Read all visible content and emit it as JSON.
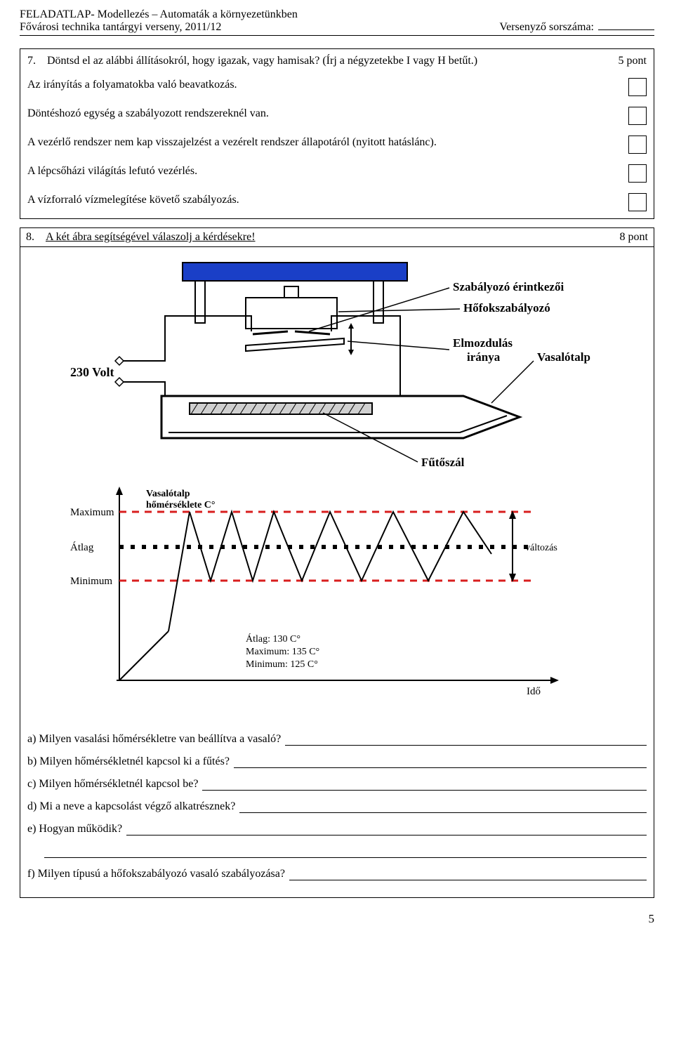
{
  "header": {
    "title": "FELADATLAP- Modellezés – Automaták a környezetünkben",
    "left": "Fővárosi technika tantárgyi verseny, 2011/12",
    "right": "Versenyző sorszáma:"
  },
  "q7": {
    "number": "7.",
    "prompt": "Döntsd el az alábbi állításokról, hogy igazak, vagy hamisak? (Írj a négyzetekbe I vagy H betűt.)",
    "points": "5 pont",
    "statements": [
      "Az irányítás a folyamatokba való beavatkozás.",
      "Döntéshozó egység a szabályozott rendszereknél van.",
      "A vezérlő rendszer nem kap visszajelzést a vezérelt rendszer állapotáról (nyitott hatáslánc).",
      "A lépcsőházi világítás lefutó vezérlés.",
      "A vízforraló vízmelegítése követő szabályozás."
    ]
  },
  "q8": {
    "number": "8.",
    "prompt": "A két ábra segítségével válaszolj a kérdésekre!",
    "points": "8 pont",
    "iron_diagram": {
      "voltage_label": "230 Volt",
      "labels": {
        "contacts": "Szabályozó érintkezői",
        "thermostat": "Hőfokszabályozó",
        "displacement_line1": "Elmozdulás",
        "displacement_line2": "iránya",
        "soleplate": "Vasalótalp",
        "heater": "Fűtőszál"
      },
      "colors": {
        "handle": "#1a3fc7",
        "body_stroke": "#000000",
        "wire_stroke": "#000000",
        "heater_fill": "#d0d0d0"
      }
    },
    "temp_chart": {
      "y_labels": {
        "max": "Maximum",
        "avg": "Átlag",
        "min": "Minimum"
      },
      "title_line1": "Vasalótalp",
      "title_line2": "hőmérséklete C°",
      "legend": {
        "avg": "Átlag: 130 C°",
        "max": "Maximum: 135 C°",
        "min": "Minimum: 125 C°"
      },
      "change_label": "változás",
      "x_label": "Idő",
      "colors": {
        "max_line": "#d81e1e",
        "min_line": "#d81e1e",
        "avg_line": "#000000",
        "temp_line": "#000000",
        "axis": "#000000"
      },
      "temp_points": [
        [
          140,
          210
        ],
        [
          170,
          40
        ],
        [
          200,
          138
        ],
        [
          230,
          40
        ],
        [
          260,
          138
        ],
        [
          290,
          40
        ],
        [
          330,
          138
        ],
        [
          370,
          40
        ],
        [
          415,
          138
        ],
        [
          460,
          40
        ],
        [
          510,
          138
        ],
        [
          560,
          40
        ],
        [
          600,
          100
        ]
      ],
      "y_max": 40,
      "y_avg": 90,
      "y_min": 138,
      "x_range": [
        70,
        660
      ]
    },
    "questions": [
      "a)  Milyen vasalási hőmérsékletre van beállítva a vasaló?",
      "b)  Milyen hőmérsékletnél kapcsol ki a fűtés?",
      "c)  Milyen hőmérsékletnél kapcsol be?",
      "d)  Mi a neve a kapcsolást végző alkatrésznek?",
      "e)  Hogyan működik?",
      "f)  Milyen típusú a hőfokszabályozó vasaló szabályozása?"
    ]
  },
  "page_number": "5"
}
